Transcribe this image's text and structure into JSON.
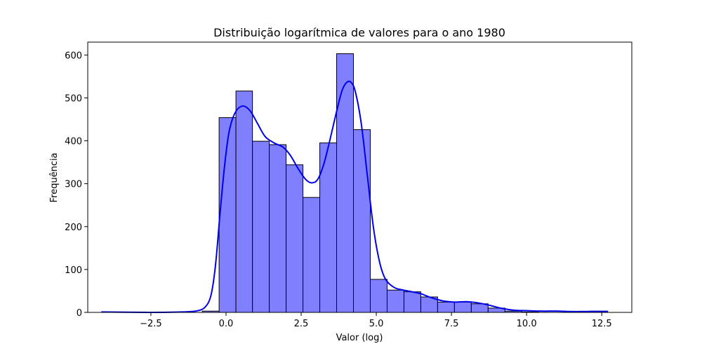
{
  "chart_data": {
    "type": "histogram",
    "title": "Distribuição logarítmica de valores para o ano 1980",
    "xlabel": "Valor (log)",
    "ylabel": "Frequência",
    "xlim": [
      -4.6,
      13.5
    ],
    "ylim": [
      0,
      630
    ],
    "x_ticks": [
      -2.5,
      0.0,
      2.5,
      5.0,
      7.5,
      10.0,
      12.5
    ],
    "x_tick_labels": [
      "−2.5",
      "0.0",
      "2.5",
      "5.0",
      "7.5",
      "10.0",
      "12.5"
    ],
    "y_ticks": [
      0,
      100,
      200,
      300,
      400,
      500,
      600
    ],
    "y_tick_labels": [
      "0",
      "100",
      "200",
      "300",
      "400",
      "500",
      "600"
    ],
    "bins": [
      {
        "x0": -4.15,
        "x1": -3.03,
        "count": 0
      },
      {
        "x0": -3.03,
        "x1": -1.91,
        "count": 0
      },
      {
        "x0": -1.91,
        "x1": -0.79,
        "count": 0
      },
      {
        "x0": -0.79,
        "x1": -0.23,
        "count": 3
      },
      {
        "x0": -0.23,
        "x1": 0.33,
        "count": 454
      },
      {
        "x0": 0.33,
        "x1": 0.88,
        "count": 516
      },
      {
        "x0": 0.88,
        "x1": 1.44,
        "count": 399
      },
      {
        "x0": 1.44,
        "x1": 2.0,
        "count": 391
      },
      {
        "x0": 2.0,
        "x1": 2.56,
        "count": 344
      },
      {
        "x0": 2.56,
        "x1": 3.12,
        "count": 268
      },
      {
        "x0": 3.12,
        "x1": 3.68,
        "count": 395
      },
      {
        "x0": 3.68,
        "x1": 4.24,
        "count": 603
      },
      {
        "x0": 4.24,
        "x1": 4.8,
        "count": 426
      },
      {
        "x0": 4.8,
        "x1": 5.36,
        "count": 77
      },
      {
        "x0": 5.36,
        "x1": 5.92,
        "count": 52
      },
      {
        "x0": 5.92,
        "x1": 6.48,
        "count": 48
      },
      {
        "x0": 6.48,
        "x1": 7.04,
        "count": 36
      },
      {
        "x0": 7.04,
        "x1": 7.6,
        "count": 24
      },
      {
        "x0": 7.6,
        "x1": 8.16,
        "count": 24
      },
      {
        "x0": 8.16,
        "x1": 8.72,
        "count": 20
      },
      {
        "x0": 8.72,
        "x1": 9.28,
        "count": 10
      },
      {
        "x0": 9.28,
        "x1": 9.84,
        "count": 3
      },
      {
        "x0": 9.84,
        "x1": 10.4,
        "count": 1
      },
      {
        "x0": 10.4,
        "x1": 10.96,
        "count": 0
      },
      {
        "x0": 10.96,
        "x1": 11.52,
        "count": 0
      },
      {
        "x0": 11.52,
        "x1": 12.08,
        "count": 0
      },
      {
        "x0": 12.08,
        "x1": 12.7,
        "count": 3
      }
    ],
    "kde": [
      [
        -4.15,
        1
      ],
      [
        -2.5,
        0
      ],
      [
        -1.5,
        1
      ],
      [
        -1.0,
        3
      ],
      [
        -0.7,
        12
      ],
      [
        -0.5,
        40
      ],
      [
        -0.35,
        110
      ],
      [
        -0.2,
        230
      ],
      [
        -0.05,
        340
      ],
      [
        0.1,
        420
      ],
      [
        0.3,
        465
      ],
      [
        0.55,
        481
      ],
      [
        0.8,
        470
      ],
      [
        1.05,
        440
      ],
      [
        1.3,
        410
      ],
      [
        1.6,
        395
      ],
      [
        1.9,
        385
      ],
      [
        2.15,
        365
      ],
      [
        2.4,
        335
      ],
      [
        2.65,
        310
      ],
      [
        2.85,
        302
      ],
      [
        3.05,
        310
      ],
      [
        3.25,
        345
      ],
      [
        3.45,
        400
      ],
      [
        3.65,
        460
      ],
      [
        3.85,
        515
      ],
      [
        4.0,
        535
      ],
      [
        4.15,
        537
      ],
      [
        4.3,
        515
      ],
      [
        4.5,
        440
      ],
      [
        4.7,
        320
      ],
      [
        4.9,
        200
      ],
      [
        5.1,
        120
      ],
      [
        5.3,
        78
      ],
      [
        5.6,
        58
      ],
      [
        5.9,
        52
      ],
      [
        6.2,
        48
      ],
      [
        6.5,
        43
      ],
      [
        6.8,
        35
      ],
      [
        7.2,
        27
      ],
      [
        7.6,
        24
      ],
      [
        8.0,
        25
      ],
      [
        8.4,
        22
      ],
      [
        8.8,
        16
      ],
      [
        9.2,
        9
      ],
      [
        9.6,
        5
      ],
      [
        10.0,
        4
      ],
      [
        10.5,
        3
      ],
      [
        11.0,
        3
      ],
      [
        11.5,
        2
      ],
      [
        12.0,
        2
      ],
      [
        12.7,
        2
      ]
    ],
    "bar_color": "#8080ff",
    "bar_edge_color": "#000000",
    "line_color": "#0000ee",
    "grid": false
  }
}
